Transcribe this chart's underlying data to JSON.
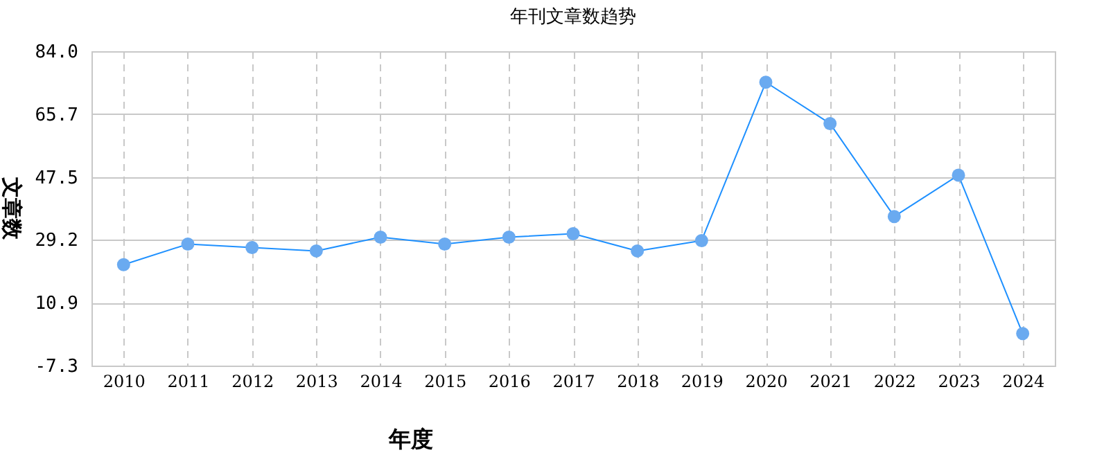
{
  "chart_data": {
    "type": "line",
    "title": "年刊文章数趋势",
    "xlabel": "年度",
    "ylabel": "文章数",
    "categories": [
      "2010",
      "2011",
      "2012",
      "2013",
      "2014",
      "2015",
      "2016",
      "2017",
      "2018",
      "2019",
      "2020",
      "2021",
      "2022",
      "2023",
      "2024"
    ],
    "series": [
      {
        "color": "#1e90ff",
        "values": [
          22,
          28,
          27,
          26,
          30,
          28,
          30,
          31,
          26,
          29,
          75,
          63,
          36,
          48,
          2
        ]
      }
    ],
    "ylim": [
      -7.3,
      84
    ],
    "yticks": [
      -7.3,
      10.9,
      29.2,
      47.5,
      65.7,
      {
        "value": 84,
        "label": "84.0"
      }
    ],
    "grid": true,
    "marker": "circle",
    "line_style": "solid"
  }
}
